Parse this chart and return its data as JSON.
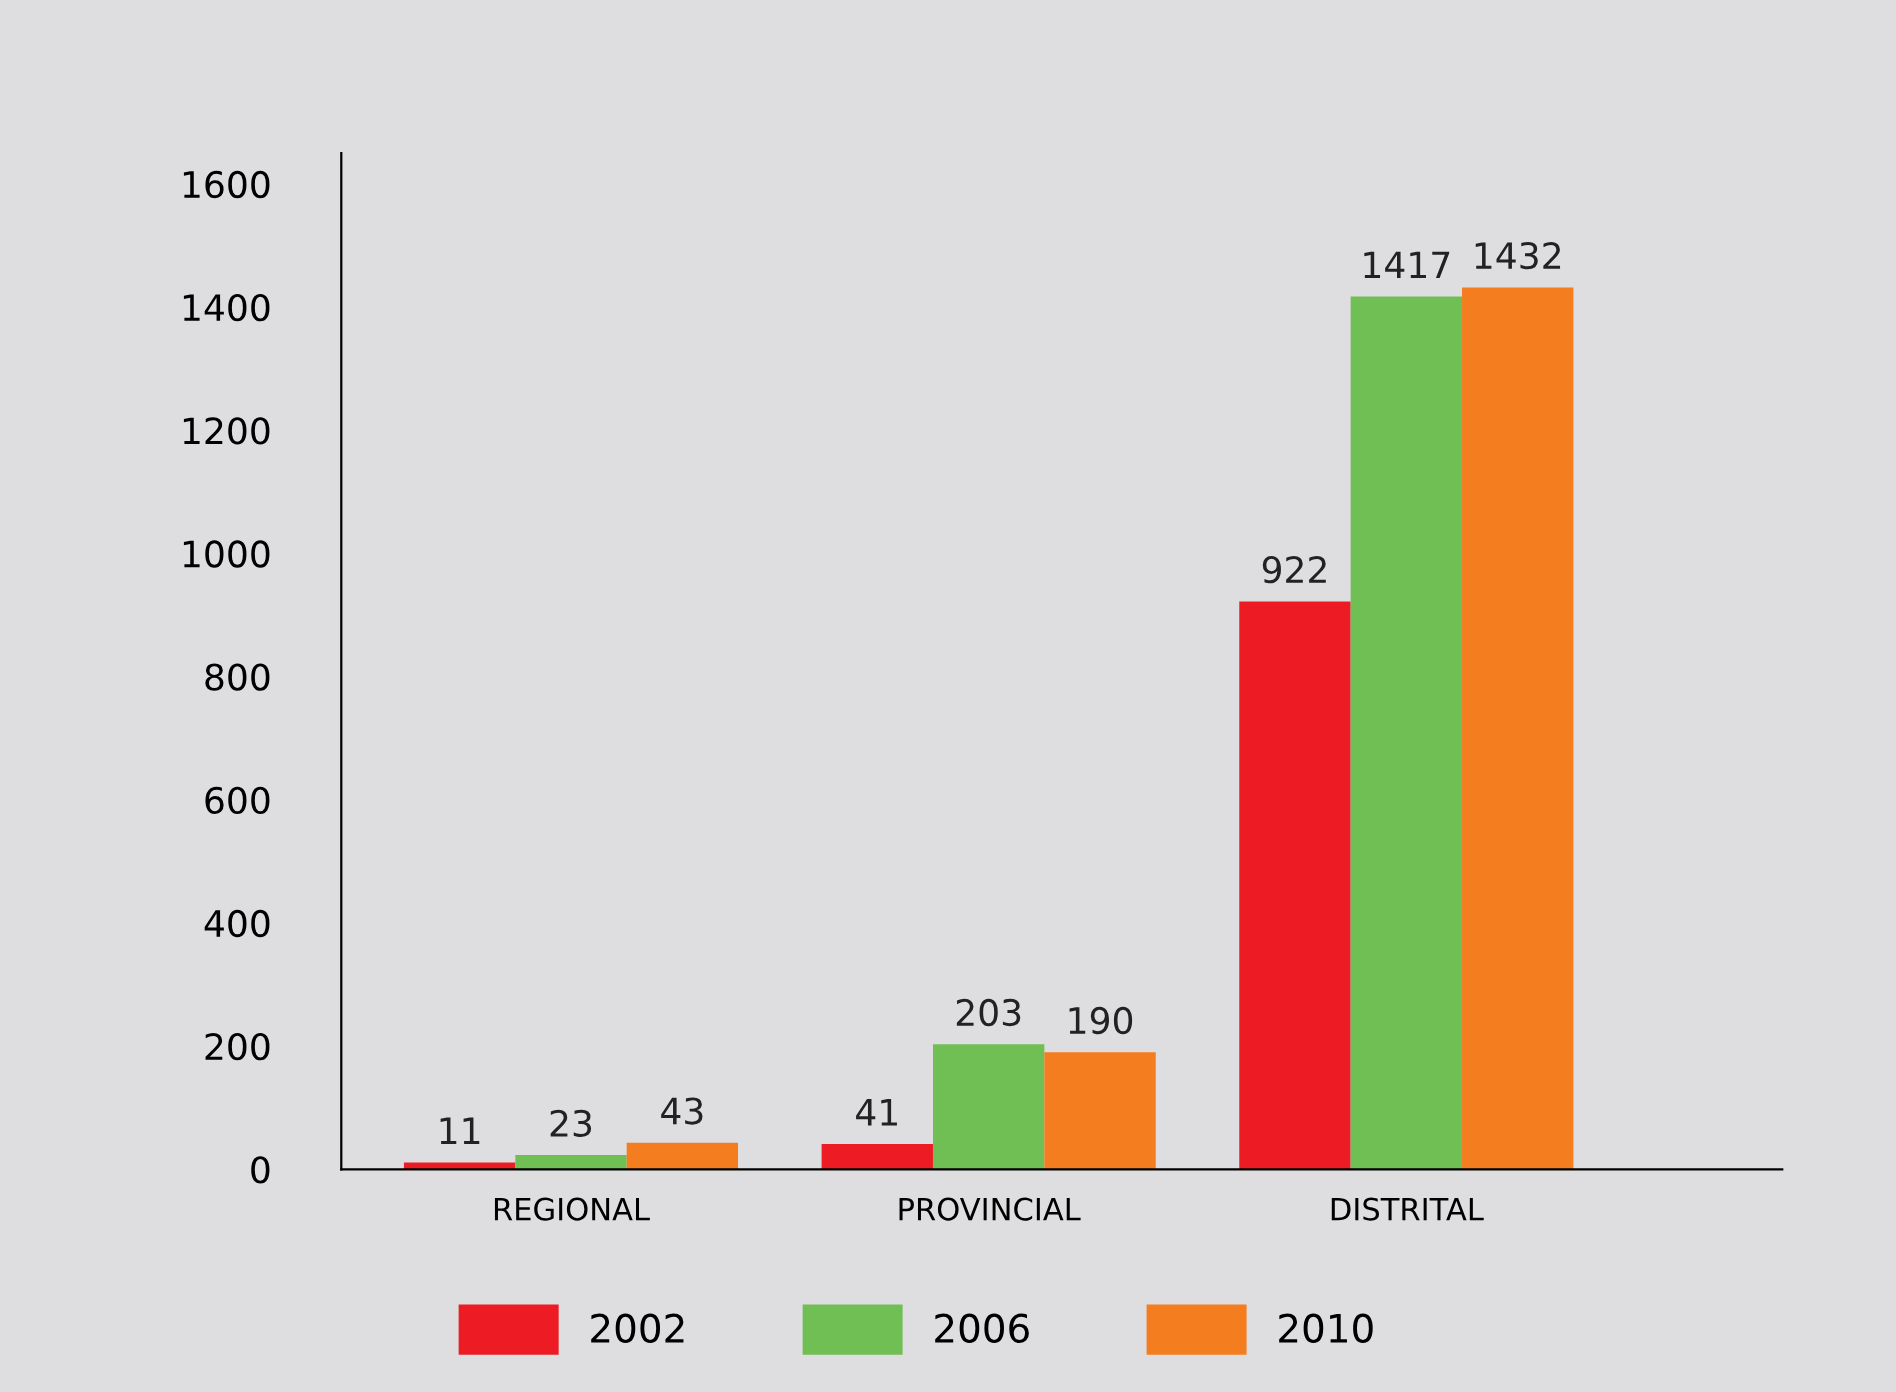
{
  "chart_data": {
    "type": "bar",
    "categories": [
      "REGIONAL",
      "PROVINCIAL",
      "DISTRITAL"
    ],
    "series": [
      {
        "name": "2002",
        "color": "#ed1c24",
        "values": [
          11,
          41,
          922
        ]
      },
      {
        "name": "2006",
        "color": "#70bf54",
        "values": [
          23,
          203,
          1417
        ]
      },
      {
        "name": "2010",
        "color": "#f47d20",
        "values": [
          43,
          190,
          1432
        ]
      }
    ],
    "ylim": [
      0,
      1650
    ],
    "yticks": [
      0,
      200,
      400,
      600,
      800,
      1000,
      1200,
      1400,
      1600
    ],
    "data_labels": true,
    "legend": "bottom",
    "grid": false
  }
}
